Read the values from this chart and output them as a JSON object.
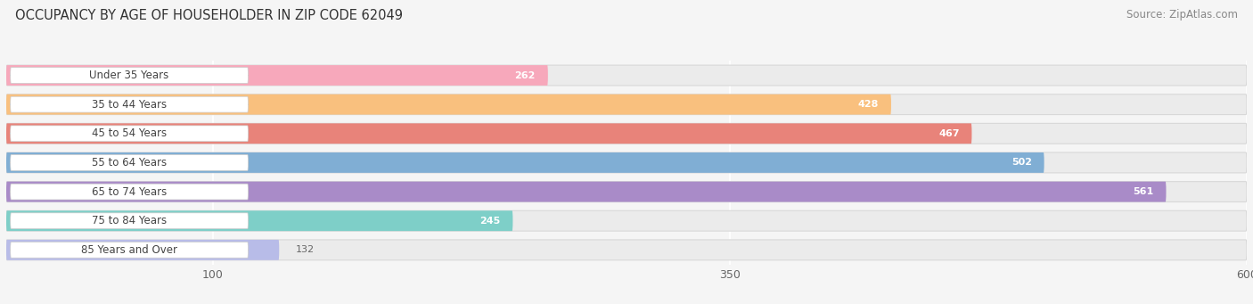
{
  "title": "OCCUPANCY BY AGE OF HOUSEHOLDER IN ZIP CODE 62049",
  "source": "Source: ZipAtlas.com",
  "categories": [
    "Under 35 Years",
    "35 to 44 Years",
    "45 to 54 Years",
    "55 to 64 Years",
    "65 to 74 Years",
    "75 to 84 Years",
    "85 Years and Over"
  ],
  "values": [
    262,
    428,
    467,
    502,
    561,
    245,
    132
  ],
  "bar_colors": [
    "#f7a8bb",
    "#f9c07e",
    "#e8837a",
    "#80aed4",
    "#a98bc8",
    "#7ecfc8",
    "#b8bce8"
  ],
  "xlim_data": [
    0,
    600
  ],
  "xticks": [
    100,
    350,
    600
  ],
  "background_color": "#f5f5f5",
  "bar_bg_color": "#e8e8e8",
  "row_bg_color": "#efefef",
  "title_fontsize": 10.5,
  "source_fontsize": 8.5,
  "label_fontsize": 8.5,
  "value_fontsize": 8.0,
  "tick_fontsize": 9
}
